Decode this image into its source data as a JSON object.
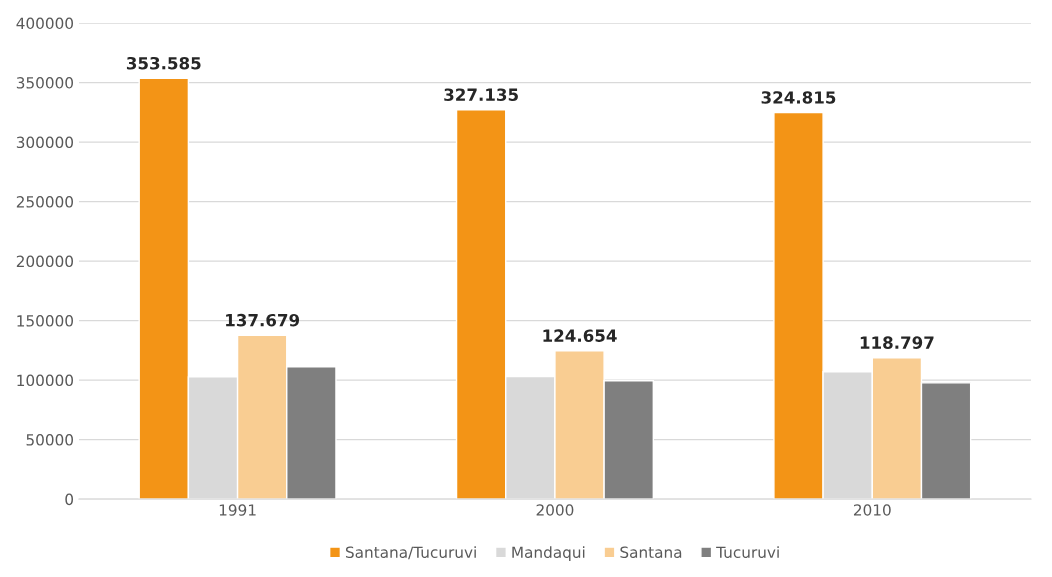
{
  "chart_data": {
    "type": "bar",
    "categories": [
      "1991",
      "2000",
      "2010"
    ],
    "series": [
      {
        "name": "Santana/Tucuruvi",
        "color": "#f39416",
        "values": [
          353585,
          327135,
          324815
        ],
        "value_labels": [
          "353.585",
          "327.135",
          "324.815"
        ]
      },
      {
        "name": "Mandaqui",
        "color": "#d9d9d9",
        "values": [
          102700,
          103000,
          107000
        ]
      },
      {
        "name": "Santana",
        "color": "#f9cd92",
        "values": [
          137679,
          124654,
          118797
        ],
        "value_labels": [
          "137.679",
          "124.654",
          "118.797"
        ]
      },
      {
        "name": "Tucuruvi",
        "color": "#7f7f7f",
        "values": [
          111200,
          99400,
          97700
        ]
      }
    ],
    "ylim": [
      0,
      400000
    ],
    "yticks": [
      0,
      50000,
      100000,
      150000,
      200000,
      250000,
      300000,
      350000,
      400000
    ],
    "grid": "y",
    "legend": "bottom"
  }
}
